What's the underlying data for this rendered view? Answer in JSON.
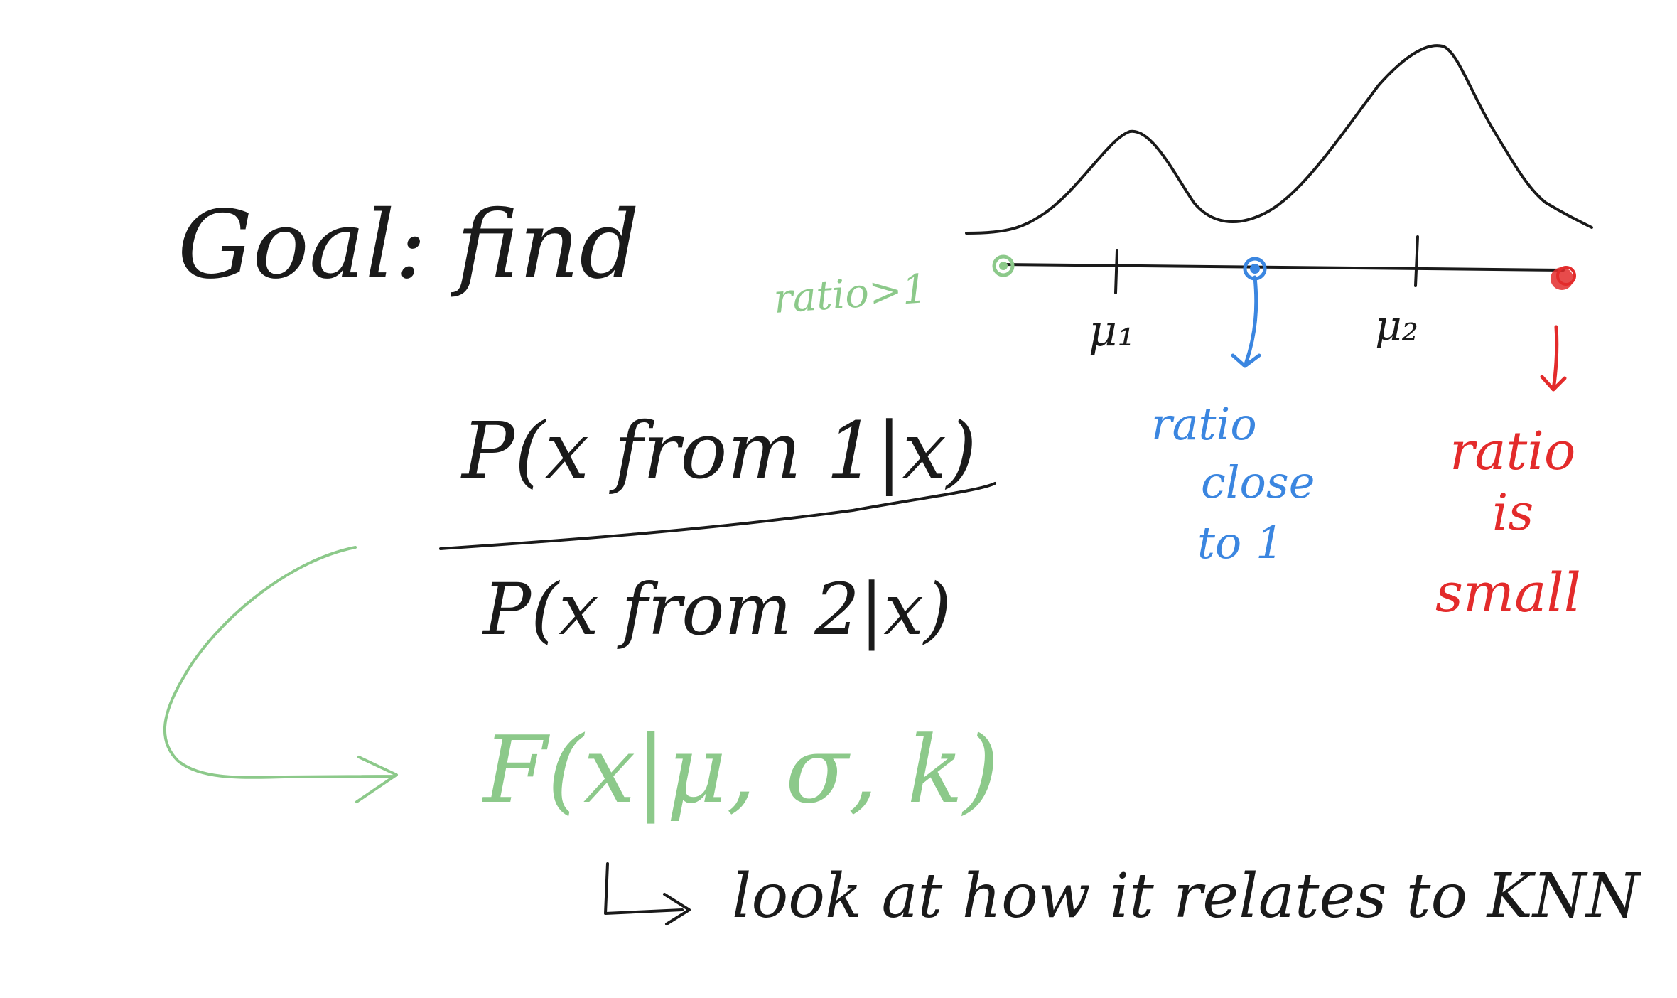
{
  "colors": {
    "ink": "#1a1a1a",
    "green": "#8cc98a",
    "blue": "#3b86e0",
    "red": "#e32b2b",
    "background": "#ffffff"
  },
  "text": {
    "goal": "Goal: find",
    "numerator": "P(x from 1|x)",
    "denominator": "P(x from 2|x)",
    "function": "F(x|μ, σ, k)",
    "footnote": "look at how it relates to KNN",
    "mu1": "μ₁",
    "mu2": "μ₂",
    "green_note": "ratio>1",
    "blue_note_1": "ratio",
    "blue_note_2": "close",
    "blue_note_3": "to 1",
    "red_note_1": "ratio",
    "red_note_2": "is",
    "red_note_3": "small"
  }
}
